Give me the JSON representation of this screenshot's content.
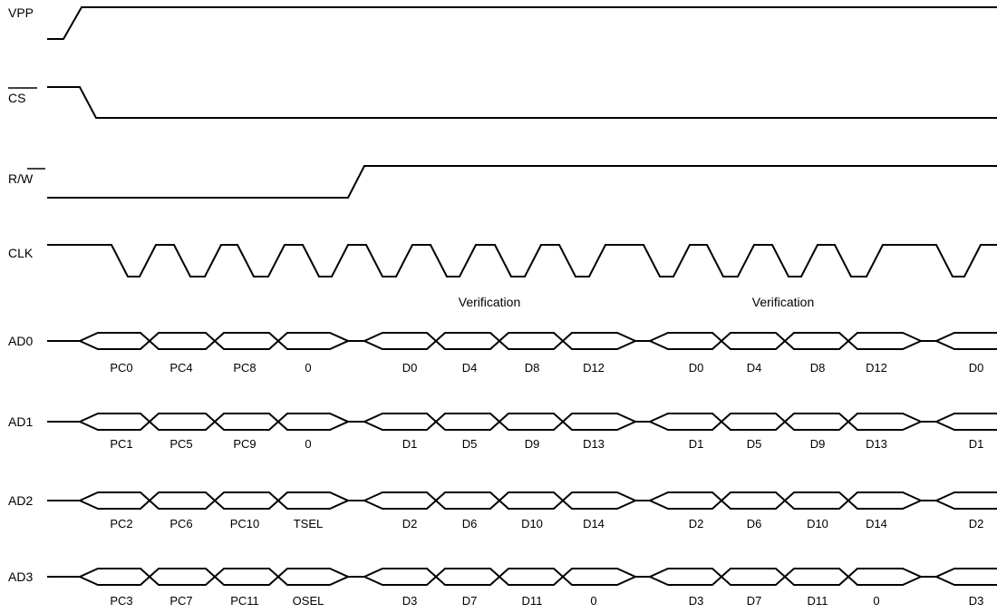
{
  "signals": {
    "vpp": "VPP",
    "cs": "CS",
    "rw_r": "R/",
    "rw_w": "W",
    "clk": "CLK"
  },
  "annotations": [
    "Verification",
    "Verification"
  ],
  "buses": [
    {
      "name": "AD0",
      "labels": [
        "PC0",
        "PC4",
        "PC8",
        "0",
        "D0",
        "D4",
        "D8",
        "D12",
        "D0",
        "D4",
        "D8",
        "D12",
        "D0"
      ]
    },
    {
      "name": "AD1",
      "labels": [
        "PC1",
        "PC5",
        "PC9",
        "0",
        "D1",
        "D5",
        "D9",
        "D13",
        "D1",
        "D5",
        "D9",
        "D13",
        "D1"
      ]
    },
    {
      "name": "AD2",
      "labels": [
        "PC2",
        "PC6",
        "PC10",
        "TSEL",
        "D2",
        "D6",
        "D10",
        "D14",
        "D2",
        "D6",
        "D10",
        "D14",
        "D2"
      ]
    },
    {
      "name": "AD3",
      "labels": [
        "PC3",
        "PC7",
        "PC11",
        "OSEL",
        "D3",
        "D7",
        "D11",
        "0",
        "D3",
        "D7",
        "D11",
        "0",
        "D3"
      ]
    }
  ]
}
